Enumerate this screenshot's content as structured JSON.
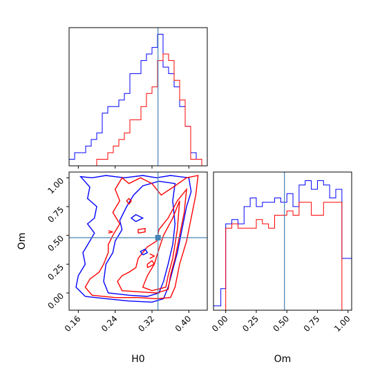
{
  "chart_data": {
    "type": "corner",
    "parameters": [
      "H0",
      "Om"
    ],
    "truth": {
      "H0": 0.333,
      "Om": 0.48
    },
    "truth_color": "#4682b4",
    "series": [
      {
        "color": "#0000ff"
      },
      {
        "color": "#ff0000"
      }
    ],
    "panels": [
      {
        "id": "h0-hist",
        "type": "histogram",
        "xlim": [
          0.14,
          0.44
        ],
        "bin_edges": [
          0.14,
          0.152,
          0.164,
          0.176,
          0.188,
          0.2,
          0.212,
          0.224,
          0.236,
          0.248,
          0.26,
          0.272,
          0.284,
          0.296,
          0.308,
          0.32,
          0.332,
          0.344,
          0.356,
          0.368,
          0.38,
          0.392,
          0.404,
          0.416,
          0.428,
          0.44
        ],
        "series_values": [
          [
            1,
            2,
            2,
            3,
            4,
            5,
            8,
            9,
            9,
            10,
            11,
            14,
            14,
            16,
            17,
            18,
            20,
            15,
            14,
            12,
            9,
            6,
            2,
            1,
            0
          ],
          [
            0,
            0,
            0,
            0,
            0,
            1,
            1,
            2,
            3,
            4,
            5,
            7,
            7,
            9,
            11,
            12,
            16,
            17,
            16,
            13,
            10,
            6,
            1,
            1,
            0
          ]
        ],
        "ylim": [
          0,
          21
        ]
      },
      {
        "id": "om-hist",
        "type": "histogram",
        "xlim": [
          -0.1,
          1.03
        ],
        "xticks": [
          "0.00",
          "0.25",
          "0.50",
          "0.75",
          "1.00"
        ],
        "xlabel": "Om",
        "bin_edges": [
          -0.1,
          -0.04,
          0.0,
          0.05,
          0.1,
          0.15,
          0.2,
          0.25,
          0.3,
          0.35,
          0.4,
          0.45,
          0.5,
          0.55,
          0.6,
          0.65,
          0.7,
          0.75,
          0.8,
          0.85,
          0.9,
          0.95,
          1.0,
          1.03
        ],
        "series_values": [
          [
            1,
            5,
            20,
            21,
            20,
            24,
            26,
            24,
            25,
            25,
            26,
            25,
            27,
            24,
            29,
            30,
            28,
            30,
            29,
            26,
            28,
            12,
            12
          ],
          [
            0,
            0,
            19,
            20,
            19,
            19,
            19,
            21,
            20,
            19,
            22,
            22,
            23,
            22,
            25,
            25,
            22,
            22,
            25,
            25,
            25,
            0,
            0
          ]
        ],
        "ylim": [
          0,
          32
        ]
      },
      {
        "id": "h0-om-contour",
        "type": "contour",
        "xlim": [
          0.14,
          0.44
        ],
        "ylim": [
          -0.15,
          1.05
        ],
        "xticks": [
          "0.16",
          "0.24",
          "0.32",
          "0.40"
        ],
        "yticks": [
          "0.00",
          "0.25",
          "0.50",
          "0.75",
          "1.00"
        ],
        "xlabel": "H0",
        "ylabel": "Om",
        "series_contours": [
          [
            [
              [
                0.155,
                0.05
              ],
              [
                0.175,
                -0.03
              ],
              [
                0.22,
                -0.05
              ],
              [
                0.27,
                -0.07
              ],
              [
                0.32,
                -0.08
              ],
              [
                0.345,
                -0.05
              ],
              [
                0.355,
                0.05
              ],
              [
                0.365,
                0.2
              ],
              [
                0.375,
                0.35
              ],
              [
                0.385,
                0.55
              ],
              [
                0.395,
                0.75
              ],
              [
                0.405,
                0.88
              ],
              [
                0.4,
                1.0
              ],
              [
                0.36,
                1.02
              ],
              [
                0.33,
                1.0
              ],
              [
                0.3,
                1.02
              ],
              [
                0.26,
                1.0
              ],
              [
                0.22,
                1.02
              ],
              [
                0.19,
                1.0
              ],
              [
                0.165,
                1.01
              ],
              [
                0.185,
                0.92
              ],
              [
                0.18,
                0.82
              ],
              [
                0.2,
                0.75
              ],
              [
                0.195,
                0.65
              ],
              [
                0.18,
                0.6
              ],
              [
                0.195,
                0.52
              ],
              [
                0.185,
                0.45
              ],
              [
                0.17,
                0.35
              ],
              [
                0.175,
                0.25
              ],
              [
                0.16,
                0.15
              ],
              [
                0.155,
                0.05
              ]
            ],
            [
              [
                0.215,
                0.1
              ],
              [
                0.225,
                0.0
              ],
              [
                0.27,
                -0.02
              ],
              [
                0.31,
                -0.03
              ],
              [
                0.335,
                0.0
              ],
              [
                0.345,
                0.1
              ],
              [
                0.355,
                0.25
              ],
              [
                0.365,
                0.42
              ],
              [
                0.37,
                0.6
              ],
              [
                0.365,
                0.8
              ],
              [
                0.37,
                0.95
              ],
              [
                0.335,
                0.97
              ],
              [
                0.3,
                0.93
              ],
              [
                0.28,
                0.85
              ],
              [
                0.265,
                0.75
              ],
              [
                0.25,
                0.63
              ],
              [
                0.255,
                0.55
              ],
              [
                0.24,
                0.45
              ],
              [
                0.235,
                0.35
              ],
              [
                0.22,
                0.25
              ],
              [
                0.215,
                0.1
              ]
            ]
          ],
          [
            [
              [
                0.175,
                0.05
              ],
              [
                0.19,
                -0.02
              ],
              [
                0.24,
                -0.04
              ],
              [
                0.29,
                -0.04
              ],
              [
                0.33,
                -0.05
              ],
              [
                0.36,
                -0.04
              ],
              [
                0.37,
                0.05
              ],
              [
                0.38,
                0.25
              ],
              [
                0.395,
                0.45
              ],
              [
                0.405,
                0.65
              ],
              [
                0.415,
                0.85
              ],
              [
                0.42,
                1.02
              ],
              [
                0.395,
                1.0
              ],
              [
                0.37,
                0.93
              ],
              [
                0.34,
                0.85
              ],
              [
                0.32,
                0.95
              ],
              [
                0.295,
                1.0
              ],
              [
                0.27,
                0.95
              ],
              [
                0.255,
                1.0
              ],
              [
                0.24,
                0.9
              ],
              [
                0.25,
                0.8
              ],
              [
                0.235,
                0.7
              ],
              [
                0.25,
                0.6
              ],
              [
                0.235,
                0.5
              ],
              [
                0.225,
                0.42
              ],
              [
                0.225,
                0.35
              ],
              [
                0.215,
                0.25
              ],
              [
                0.205,
                0.18
              ],
              [
                0.185,
                0.12
              ],
              [
                0.175,
                0.05
              ]
            ],
            [
              [
                0.245,
                0.1
              ],
              [
                0.255,
                0.02
              ],
              [
                0.29,
                0.01
              ],
              [
                0.33,
                0.0
              ],
              [
                0.355,
                0.03
              ],
              [
                0.36,
                0.15
              ],
              [
                0.37,
                0.3
              ],
              [
                0.38,
                0.5
              ],
              [
                0.39,
                0.7
              ],
              [
                0.395,
                0.9
              ],
              [
                0.375,
                0.8
              ],
              [
                0.355,
                0.65
              ],
              [
                0.335,
                0.55
              ],
              [
                0.33,
                0.45
              ],
              [
                0.31,
                0.4
              ],
              [
                0.29,
                0.3
              ],
              [
                0.285,
                0.22
              ],
              [
                0.27,
                0.18
              ],
              [
                0.255,
                0.15
              ],
              [
                0.245,
                0.1
              ]
            ],
            [
              [
                0.3,
                0.05
              ],
              [
                0.32,
                0.02
              ],
              [
                0.35,
                0.05
              ],
              [
                0.355,
                0.15
              ],
              [
                0.365,
                0.3
              ],
              [
                0.375,
                0.55
              ],
              [
                0.38,
                0.8
              ],
              [
                0.365,
                0.65
              ],
              [
                0.345,
                0.5
              ],
              [
                0.335,
                0.38
              ],
              [
                0.325,
                0.25
              ],
              [
                0.31,
                0.15
              ],
              [
                0.3,
                0.05
              ]
            ]
          ]
        ],
        "islands": [
          {
            "series": 1,
            "points": [
              [
                0.225,
                0.52
              ],
              [
                0.235,
                0.53
              ],
              [
                0.225,
                0.54
              ]
            ]
          },
          {
            "series": 1,
            "points": [
              [
                0.27,
                0.77
              ],
              [
                0.275,
                0.8
              ],
              [
                0.27,
                0.82
              ],
              [
                0.265,
                0.8
              ],
              [
                0.27,
                0.77
              ]
            ]
          },
          {
            "series": 1,
            "points": [
              [
                0.29,
                0.52
              ],
              [
                0.305,
                0.53
              ],
              [
                0.305,
                0.56
              ],
              [
                0.29,
                0.55
              ],
              [
                0.29,
                0.52
              ]
            ]
          },
          {
            "series": 1,
            "points": [
              [
                0.31,
                0.22
              ],
              [
                0.325,
                0.25
              ],
              [
                0.32,
                0.28
              ],
              [
                0.31,
                0.25
              ],
              [
                0.31,
                0.22
              ]
            ]
          },
          {
            "series": 1,
            "points": [
              [
                0.315,
                0.3
              ],
              [
                0.325,
                0.32
              ],
              [
                0.315,
                0.34
              ]
            ]
          },
          {
            "series": 0,
            "points": [
              [
                0.285,
                0.62
              ],
              [
                0.3,
                0.65
              ],
              [
                0.285,
                0.68
              ],
              [
                0.275,
                0.65
              ],
              [
                0.285,
                0.62
              ]
            ]
          },
          {
            "series": 0,
            "points": [
              [
                0.3,
                0.33
              ],
              [
                0.31,
                0.35
              ],
              [
                0.305,
                0.38
              ],
              [
                0.295,
                0.36
              ],
              [
                0.3,
                0.33
              ]
            ]
          }
        ]
      }
    ]
  }
}
